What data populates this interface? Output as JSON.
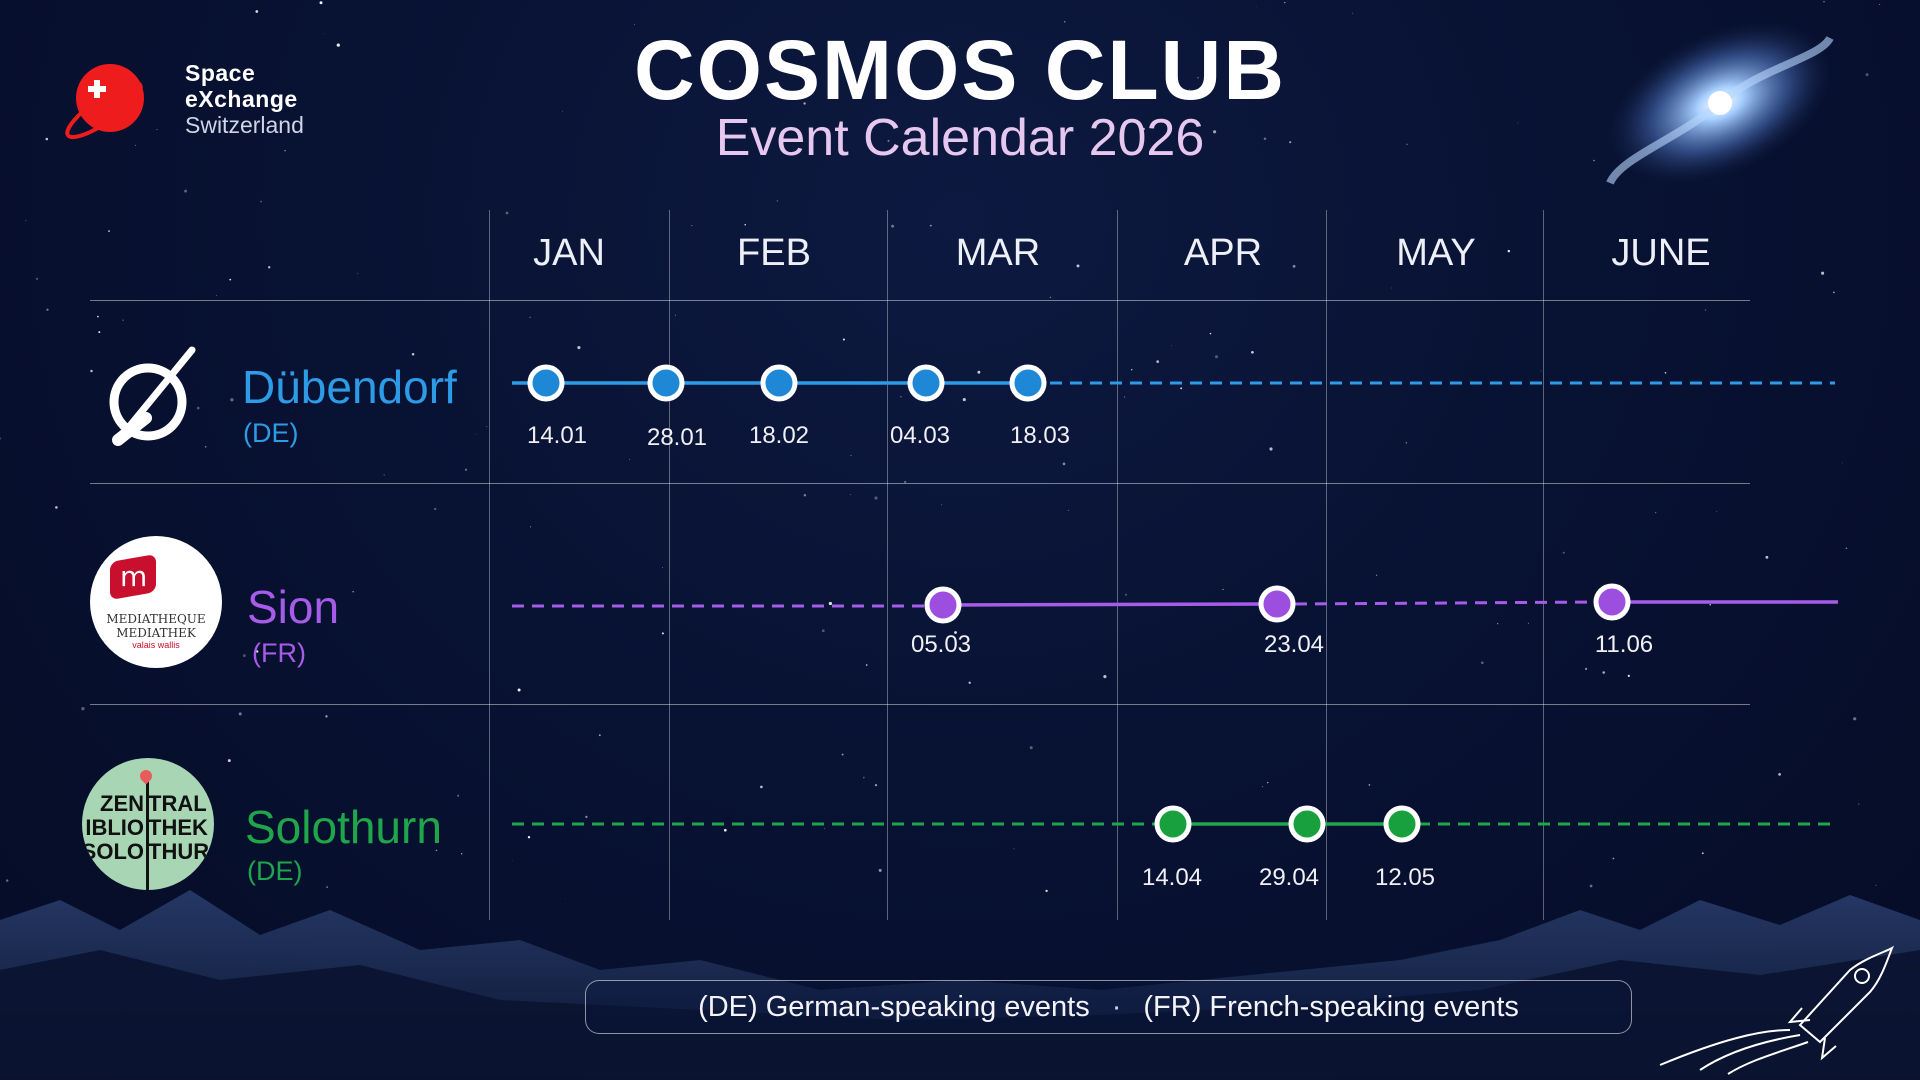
{
  "header": {
    "title": "COSMOS CLUB",
    "subtitle": "Event Calendar 2026"
  },
  "logo": {
    "line1": "Space",
    "line2": "eXchange",
    "line3": "Switzerland",
    "icon": "red-planet-swiss-cross-icon"
  },
  "months": [
    "JAN",
    "FEB",
    "MAR",
    "APR",
    "MAY",
    "JUNE"
  ],
  "rows": [
    {
      "city": "Dübendorf",
      "lang": "(DE)",
      "color": "#2e9be6",
      "dot_color": "#1e88d6",
      "badge_icon": "orbit-slash-icon",
      "dates": [
        "14.01",
        "28.01",
        "18.02",
        "04.03",
        "18.03"
      ]
    },
    {
      "city": "Sion",
      "lang": "(FR)",
      "color": "#a65ce8",
      "dot_color": "#9c4fdf",
      "badge_icon": "mediatheque-logo-icon",
      "badge_text": [
        "MEDIATHEQUE",
        "MEDIATHEK",
        "valais wallis"
      ],
      "dates": [
        "05.03",
        "23.04",
        "11.06"
      ]
    },
    {
      "city": "Solothurn",
      "lang": "(DE)",
      "color": "#1fa64a",
      "dot_color": "#18a03f",
      "badge_icon": "zentralbibliothek-logo-icon",
      "badge_text": [
        "ZEN",
        "TRAL",
        "IBLIO",
        "THEK",
        "SOLO",
        "THUR"
      ],
      "dates": [
        "14.04",
        "29.04",
        "12.05"
      ]
    }
  ],
  "legend": {
    "de": "(DE) German-speaking events",
    "separator": "·",
    "fr": "(FR) French-speaking events"
  }
}
